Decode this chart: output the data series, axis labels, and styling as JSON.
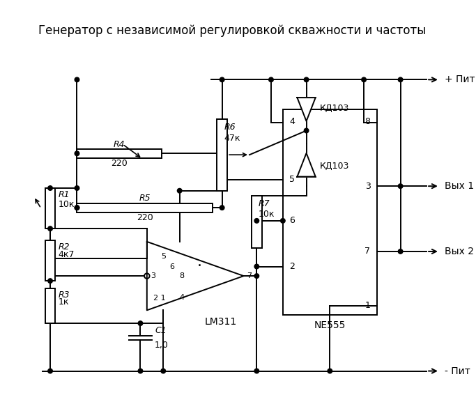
{
  "title": "Генератор с независимой регулировкой скважности и частоты",
  "bg": "#ffffff",
  "lc": "#000000",
  "lw": 1.4,
  "title_fs": 12,
  "top_label": "+ Пит",
  "bot_label": "- Пит",
  "out1_label": "Вых 1",
  "out2_label": "Вых 2",
  "ic_label": "NE555",
  "ic2_label": "LM311",
  "r1_label": [
    "R1",
    "10к"
  ],
  "r2_label": [
    "R2",
    "4к7"
  ],
  "r3_label": [
    "R3",
    "1к"
  ],
  "r4_label": [
    "R4",
    "220"
  ],
  "r5_label": [
    "R5",
    "220"
  ],
  "r6_label": [
    "R6",
    "47к"
  ],
  "r7_label": [
    "R7",
    "10к"
  ],
  "d1_label": "КД103",
  "d2_label": "КД103",
  "c1_label": [
    "C1",
    "1,0"
  ]
}
